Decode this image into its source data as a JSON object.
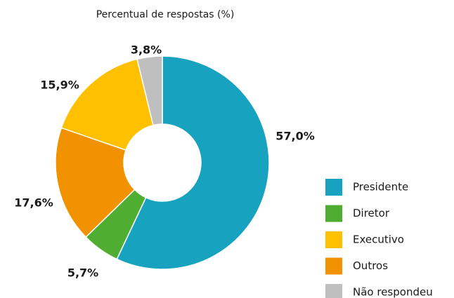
{
  "chart_data": {
    "type": "pie",
    "title": "Percentual de respostas (%)",
    "categories": [
      "Presidente",
      "Diretor",
      "Outros",
      "Executivo",
      "Não respondeu"
    ],
    "values": [
      57.0,
      5.7,
      17.6,
      15.9,
      3.8
    ],
    "value_labels": [
      "57,0%",
      "5,7%",
      "17,6%",
      "15,9%",
      "3,8%"
    ],
    "colors": [
      "#17a2c0",
      "#4fae31",
      "#f39200",
      "#ffc000",
      "#bfbfbf"
    ],
    "legend_order": [
      0,
      1,
      3,
      2,
      4
    ]
  }
}
